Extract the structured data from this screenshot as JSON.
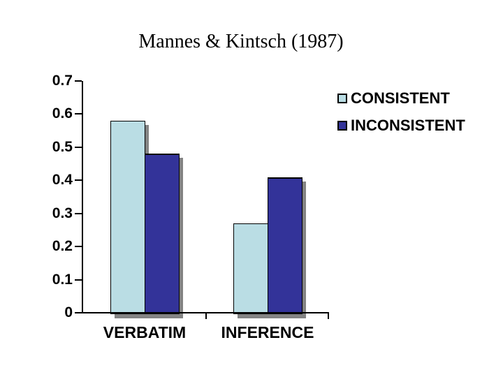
{
  "title": {
    "text": "Mannes & Kintsch (1987)"
  },
  "colors": {
    "background": "#ffffff",
    "axis": "#000000",
    "text": "#000000",
    "shadow": "#848484",
    "consistent": "#badde4",
    "inconsistent": "#333399"
  },
  "chart_data": {
    "type": "bar",
    "title": "Mannes & Kintsch (1987)",
    "categories": [
      "VERBATIM",
      "INFERENCE"
    ],
    "series": [
      {
        "name": "CONSISTENT",
        "color": "#badde4",
        "values": [
          0.58,
          0.27
        ]
      },
      {
        "name": "INCONSISTENT",
        "color": "#333399",
        "values": [
          0.48,
          0.41
        ]
      }
    ],
    "ylim": [
      0,
      0.7
    ],
    "ytick_step": 0.1,
    "ytick_labels": [
      "0",
      "0.1",
      "0.2",
      "0.3",
      "0.4",
      "0.5",
      "0.6",
      "0.7"
    ],
    "grid": false,
    "legend_position": "top-right",
    "bar_shadow": true,
    "bar_outline": "#000000"
  }
}
